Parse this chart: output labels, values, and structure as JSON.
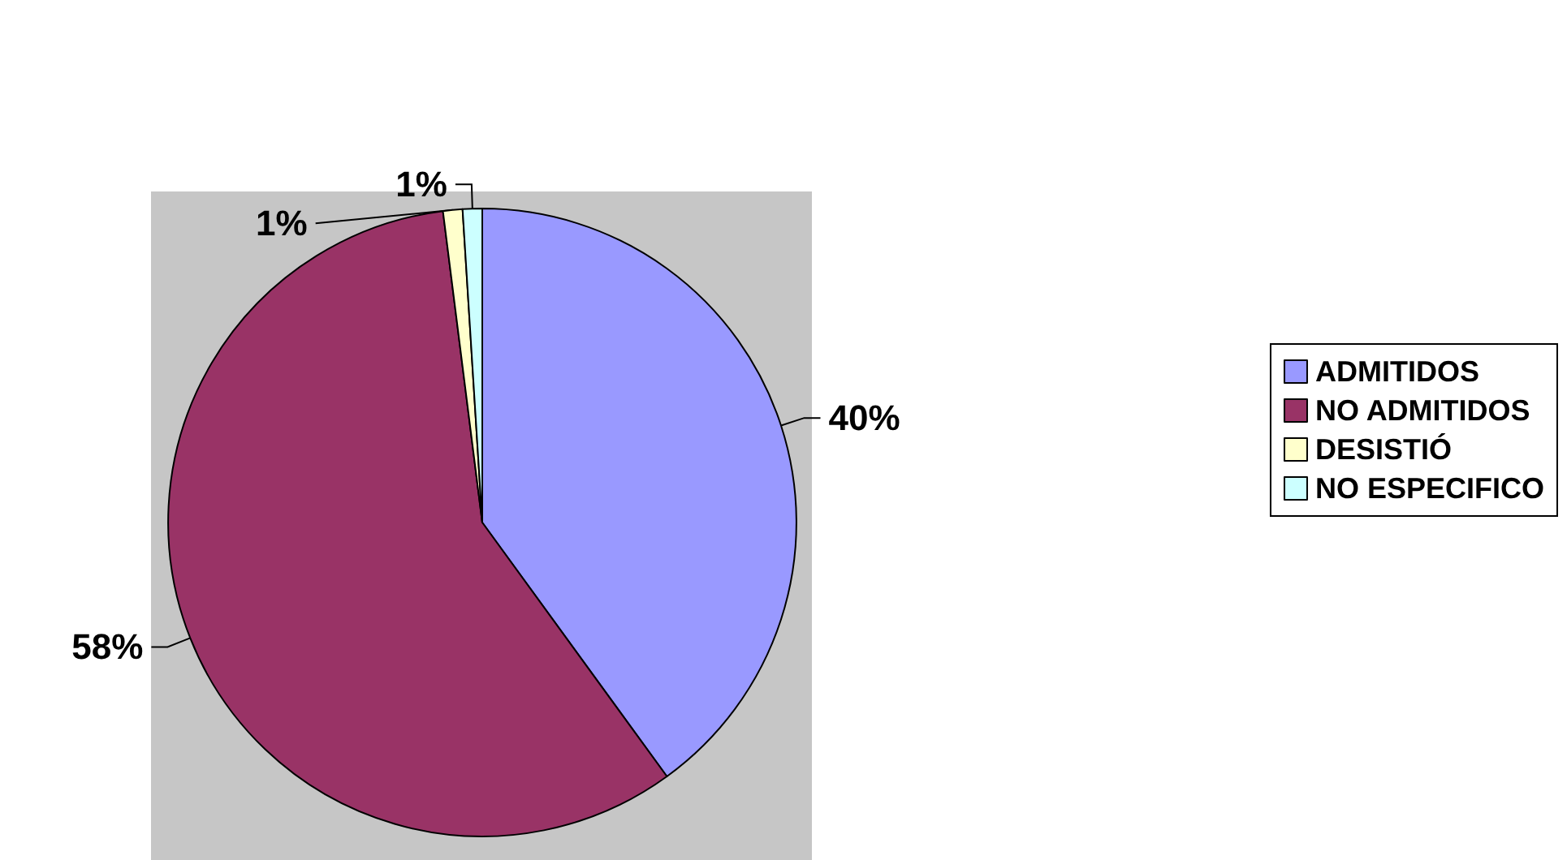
{
  "chart_data": {
    "type": "pie",
    "categories": [
      "ADMITIDOS",
      "NO ADMITIDOS",
      "DESISTIÓ",
      "NO ESPECIFICO"
    ],
    "values": [
      40,
      58,
      1,
      1
    ],
    "colors": [
      "#9999ff",
      "#993366",
      "#ffffcc",
      "#ccffff"
    ],
    "value_labels": [
      "40%",
      "58%",
      "1%",
      "1%"
    ],
    "legend": "right"
  }
}
